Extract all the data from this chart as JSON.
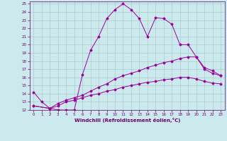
{
  "xlabel": "Windchill (Refroidissement éolien,°C)",
  "background_color": "#cce9ed",
  "grid_color": "#aacccc",
  "line_color": "#990099",
  "xlim": [
    -0.5,
    23.5
  ],
  "ylim": [
    12,
    25.3
  ],
  "xticks": [
    0,
    1,
    2,
    3,
    4,
    5,
    6,
    7,
    8,
    9,
    10,
    11,
    12,
    13,
    14,
    15,
    16,
    17,
    18,
    19,
    20,
    21,
    22,
    23
  ],
  "yticks": [
    12,
    13,
    14,
    15,
    16,
    17,
    18,
    19,
    20,
    21,
    22,
    23,
    24,
    25
  ],
  "line1_x": [
    0,
    1,
    2,
    3,
    4,
    5,
    6,
    7,
    8,
    9,
    10,
    11,
    12,
    13,
    14,
    15,
    16,
    17,
    18,
    19,
    20,
    21,
    22,
    23
  ],
  "line1_y": [
    14.2,
    13.0,
    12.2,
    12.0,
    12.0,
    12.0,
    16.3,
    19.3,
    21.0,
    23.2,
    24.3,
    25.0,
    24.3,
    23.2,
    21.0,
    23.3,
    23.2,
    22.5,
    20.0,
    20.0,
    18.5,
    17.0,
    16.5,
    16.2
  ],
  "line2_x": [
    0,
    2,
    3,
    4,
    5,
    6,
    7,
    8,
    9,
    10,
    11,
    12,
    13,
    14,
    15,
    16,
    17,
    18,
    19,
    20,
    21,
    22,
    23
  ],
  "line2_y": [
    12.5,
    12.2,
    12.8,
    13.2,
    13.5,
    13.8,
    14.3,
    14.8,
    15.2,
    15.8,
    16.2,
    16.5,
    16.8,
    17.2,
    17.5,
    17.8,
    18.0,
    18.3,
    18.5,
    18.5,
    17.2,
    16.8,
    16.2
  ],
  "line3_x": [
    0,
    2,
    3,
    4,
    5,
    6,
    7,
    8,
    9,
    10,
    11,
    12,
    13,
    14,
    15,
    16,
    17,
    18,
    19,
    20,
    21,
    22,
    23
  ],
  "line3_y": [
    12.5,
    12.2,
    12.5,
    13.0,
    13.2,
    13.5,
    13.8,
    14.0,
    14.3,
    14.5,
    14.8,
    15.0,
    15.2,
    15.4,
    15.5,
    15.7,
    15.8,
    16.0,
    16.0,
    15.8,
    15.5,
    15.3,
    15.2
  ]
}
